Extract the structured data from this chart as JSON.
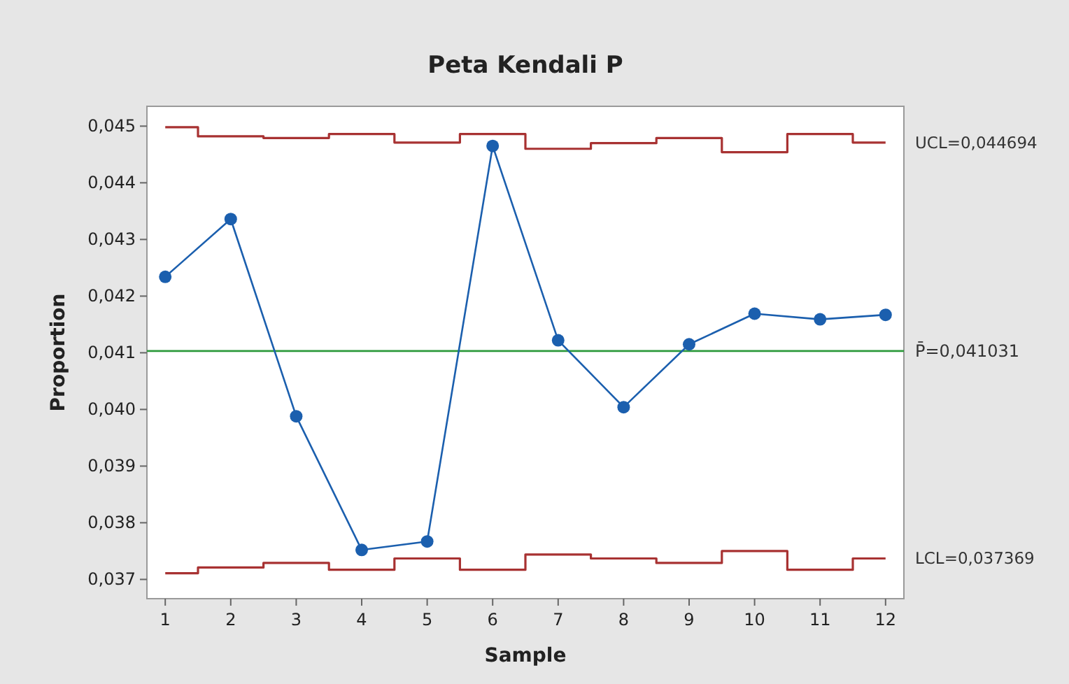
{
  "chart_data": {
    "type": "line",
    "title": "Peta Kendali P",
    "xlabel": "Sample",
    "ylabel": "Proportion",
    "x": [
      1,
      2,
      3,
      4,
      5,
      6,
      7,
      8,
      9,
      10,
      11,
      12
    ],
    "xlim": [
      0.72,
      12.28
    ],
    "xticks": [
      1,
      2,
      3,
      4,
      5,
      6,
      7,
      8,
      9,
      10,
      11,
      12
    ],
    "ylim": [
      0.03666,
      0.04535
    ],
    "yticks": [
      {
        "value": 0.037,
        "label": "0,037"
      },
      {
        "value": 0.038,
        "label": "0,038"
      },
      {
        "value": 0.039,
        "label": "0,039"
      },
      {
        "value": 0.04,
        "label": "0,040"
      },
      {
        "value": 0.041,
        "label": "0,041"
      },
      {
        "value": 0.042,
        "label": "0,042"
      },
      {
        "value": 0.043,
        "label": "0,043"
      },
      {
        "value": 0.044,
        "label": "0,044"
      },
      {
        "value": 0.045,
        "label": "0,045"
      }
    ],
    "grid": false,
    "series": [
      {
        "type": "step",
        "name": "UCL=0,044694",
        "color": "#a83232",
        "marker": "none",
        "values": [
          0.04498,
          0.04482,
          0.04479,
          0.04486,
          0.04471,
          0.04486,
          0.0446,
          0.0447,
          0.04479,
          0.04454,
          0.04486,
          0.04471
        ]
      },
      {
        "type": "step",
        "name": "LCL=0,037369",
        "color": "#a83232",
        "marker": "none",
        "values": [
          0.03711,
          0.03721,
          0.03729,
          0.03717,
          0.03737,
          0.03717,
          0.03744,
          0.03737,
          0.03729,
          0.0375,
          0.03717,
          0.03737
        ]
      },
      {
        "color": "#1b5fae",
        "marker": "circle",
        "values": [
          0.04234,
          0.04336,
          0.03988,
          0.03752,
          0.03767,
          0.04465,
          0.04122,
          0.04004,
          0.04115,
          0.04169,
          0.04159,
          0.04167
        ]
      }
    ],
    "ref_lines": [
      {
        "axis": "y",
        "value": 0.041031,
        "label": "P̄=0,041031",
        "color": "#2e9a3c"
      }
    ]
  }
}
